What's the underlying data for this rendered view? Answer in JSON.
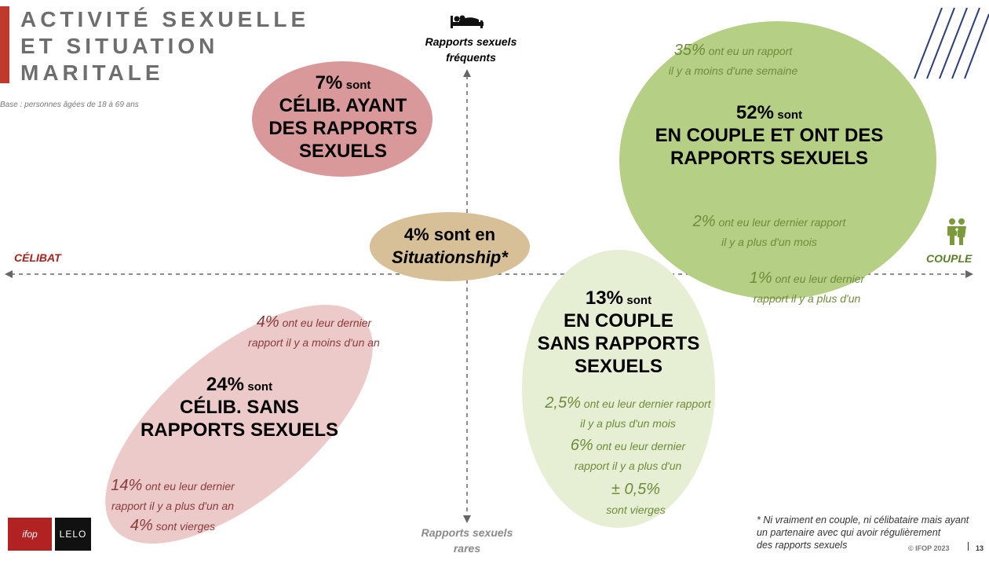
{
  "title": {
    "line1": "ACTIVITÉ SEXUELLE",
    "line2": "ET SITUATION",
    "line3": "MARITALE"
  },
  "base": "Base : personnes âgées de 18 à 69 ans",
  "axes": {
    "top": {
      "line1": "Rapports sexuels",
      "line2": "fréquents"
    },
    "bottom": {
      "line1": "Rapports sexuels",
      "line2": "rares"
    },
    "left": "CÉLIBAT",
    "right": "COUPLE"
  },
  "ellipses": {
    "celib_avec": {
      "pct": "7%",
      "sont": "sont",
      "lines": [
        "CÉLIB. AYANT",
        "DES RAPPORTS",
        "SEXUELS"
      ]
    },
    "situationship": {
      "line1": "4% sont en",
      "line2": "Situationship*"
    },
    "couple_avec": {
      "top": {
        "pct": "35%",
        "text1": "ont eu un rapport",
        "text2": "il y a moins d'une semaine"
      },
      "pct": "52%",
      "sont": "sont",
      "lines": [
        "EN COUPLE ET ONT DES",
        "RAPPORTS SEXUELS"
      ],
      "sub1": {
        "pct": "2%",
        "text1": "ont eu leur dernier rapport",
        "text2": "il y a plus d'un mois"
      },
      "sub2": {
        "pct": "1%",
        "text1": "ont eu leur dernier",
        "text2": "rapport il y a plus d'un"
      }
    },
    "couple_sans": {
      "pct": "13%",
      "sont": "sont",
      "lines": [
        "EN COUPLE",
        "SANS RAPPORTS",
        "SEXUELS"
      ],
      "sub1": {
        "pct": "2,5%",
        "text1": "ont eu leur dernier rapport",
        "text2": "il y a plus d'un mois"
      },
      "sub2": {
        "pct": "6%",
        "text1": "ont eu leur dernier",
        "text2": "rapport il y a plus d'un"
      },
      "sub3": {
        "pct": "± 0,5%",
        "text2": "sont vierges"
      }
    },
    "celib_sans": {
      "top": {
        "pct": "4%",
        "text1": "ont eu leur dernier",
        "text2": "rapport il y a moins d'un an"
      },
      "pct": "24%",
      "sont": "sont",
      "lines": [
        "CÉLIB. SANS",
        "RAPPORTS SEXUELS"
      ],
      "sub1": {
        "pct": "14%",
        "text1": "ont eu leur dernier",
        "text2": "rapport il y a plus d'un an"
      },
      "sub2": {
        "pct": "4%",
        "text1": "sont vierges"
      }
    }
  },
  "footnote": {
    "line1": "* Ni vraiment en couple, ni célibataire mais ayant",
    "line2": "un partenaire  avec qui avoir régulièrement",
    "line3": "des rapports sexuels"
  },
  "copyright": "© IFOP 2023",
  "page_number": "13",
  "logos": {
    "ifop": "ifop",
    "lelo": "LELO"
  },
  "icons": [
    "bed-icon",
    "couple-icon",
    "diagonal-lines-decoration"
  ],
  "colors": {
    "accent_red": "#c0392b",
    "green_dark": "#b5cf84",
    "green_light": "#e6efd4",
    "pink_dark": "#d9999a",
    "pink_light": "#eccac9",
    "tan": "#d7bf97"
  }
}
